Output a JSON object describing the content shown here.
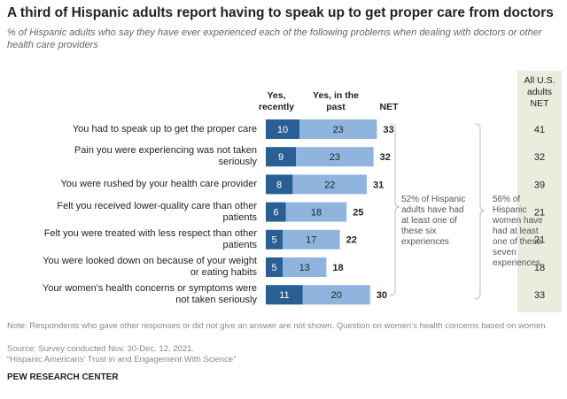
{
  "chart_data": {
    "type": "stacked_bar",
    "title": "A third of Hispanic adults report having to speak up to get proper care from doctors",
    "subtitle": "% of Hispanic adults who say they have ever experienced each of the following problems when dealing with doctors or other health care providers",
    "categories": [
      "You had to speak up to get the proper care",
      "Pain you were experiencing was not taken seriously",
      "You were rushed by your health care provider",
      "Felt you received lower-quality care than other patients",
      "Felt you were treated with less respect than other patients",
      "You were looked down on because of your weight or eating habits",
      "Your women's health concerns or symptoms were not taken seriously"
    ],
    "series": [
      {
        "name": "Yes, recently",
        "color": "#2a5f95",
        "values": [
          10,
          9,
          8,
          6,
          5,
          5,
          11
        ]
      },
      {
        "name": "Yes, in the past",
        "color": "#8fb5de",
        "values": [
          23,
          23,
          22,
          18,
          17,
          13,
          20
        ]
      }
    ],
    "net_label": "NET",
    "net": [
      33,
      32,
      31,
      25,
      22,
      18,
      30
    ],
    "comparison_label": "All U.S. adults NET",
    "comparison": [
      41,
      32,
      39,
      21,
      21,
      18,
      33
    ],
    "annotations": [
      "52% of Hispanic adults have had at least one of these six experiences",
      "56% of Hispanic women have had at least one of these seven experiences"
    ],
    "notes": [
      "Note: Respondents who gave other responses or did not give an answer are not shown. Question on women’s health concerns based on women.",
      "Source: Survey conducted Nov. 30-Dec. 12, 2021.",
      "“Hispanic Americans’ Trust in and Engagement With Science”"
    ],
    "credit": "PEW RESEARCH CENTER"
  }
}
